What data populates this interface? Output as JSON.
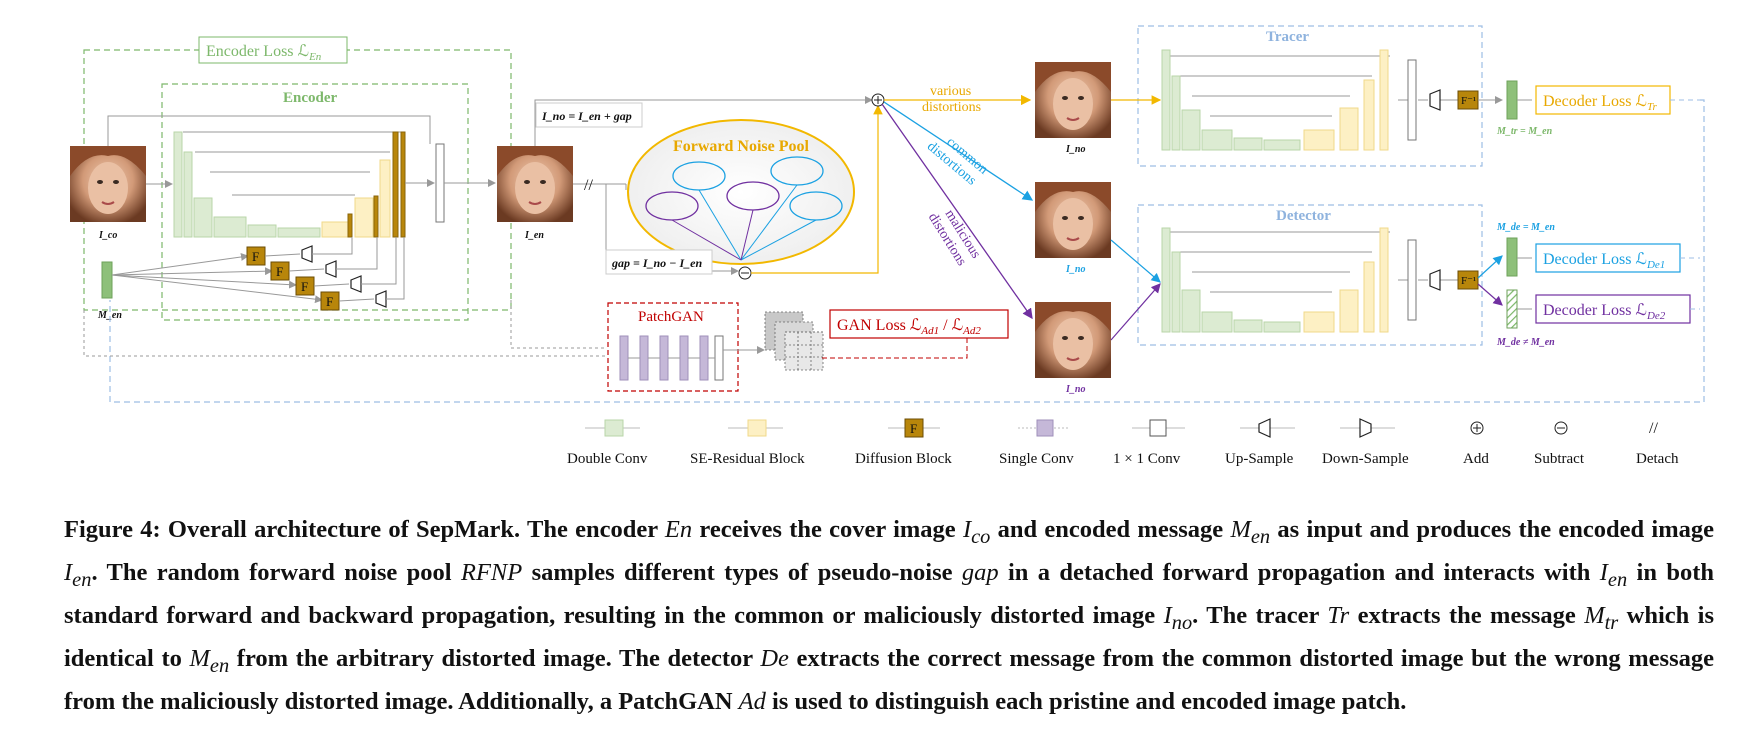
{
  "colors": {
    "encoder_green": "#7db86b",
    "block_green": "#dcebd2",
    "block_yellow": "#fdf0c4",
    "diffusion_gold": "#b8860b",
    "single_conv_purple": "#c5b8d8",
    "noise_pool_orange": "#f2b800",
    "common_blue": "#1ba1e2",
    "malicious_purple": "#7030a0",
    "tracer_blue": "#9dbde4",
    "gan_red": "#c00000",
    "decoder_yellow": "#f2b800"
  },
  "diagram": {
    "encoder_loss_label": "Encoder Loss ℒ",
    "encoder_loss_sub": "En",
    "encoder_label": "Encoder",
    "tracer_label": "Tracer",
    "detector_label": "Detector",
    "patchgan_label": "PatchGAN",
    "forward_noise_pool_label": "Forward Noise Pool",
    "gan_loss_label": "GAN Loss ℒ",
    "gan_loss_sub1": "Ad1",
    "gan_loss_sep": " / ℒ",
    "gan_loss_sub2": "Ad2",
    "decoder_loss_tr_label": "Decoder Loss ℒ",
    "decoder_loss_tr_sub": "Tr",
    "decoder_loss_de1_label": "Decoder Loss ℒ",
    "decoder_loss_de1_sub": "De1",
    "decoder_loss_de2_label": "Decoder Loss ℒ",
    "decoder_loss_de2_sub": "De2",
    "various_distortions": [
      "various",
      "distortions"
    ],
    "common_distortions": [
      "common",
      "distortions"
    ],
    "malicious_distortions": [
      "malicious",
      "distortions"
    ],
    "i_no_eq": "I",
    "i_no_eq_text": "I_no = I_en + gap",
    "gap_eq_text": "gap = I_no − I_en",
    "m_tr_eq": "M_tr = M_en",
    "m_de_eq": "M_de = M_en",
    "m_de_neq": "M_de ≠ M_en",
    "detach_symbol": "//",
    "f_label": "F",
    "f_inv_label": "F⁻¹",
    "image_labels": {
      "i_co": "I_co",
      "i_en": "I_en",
      "m_en": "M_en",
      "i_no_top": "I_no",
      "i_no_mid": "I_no",
      "i_no_bot": "I_no"
    }
  },
  "legend": [
    {
      "label": "Double Conv"
    },
    {
      "label": "SE-Residual Block"
    },
    {
      "label": "Diffusion Block"
    },
    {
      "label": "Single Conv"
    },
    {
      "label": "1 × 1 Conv"
    },
    {
      "label": "Up-Sample"
    },
    {
      "label": "Down-Sample"
    },
    {
      "label": "Add"
    },
    {
      "label": "Subtract"
    },
    {
      "label": "Detach"
    }
  ],
  "caption": {
    "p1": "Figure 4: Overall architecture of SepMark. The encoder ",
    "m1": "En",
    "p2": " receives the cover image ",
    "m2": "I",
    "m2s": "co",
    "p3": " and encoded message ",
    "m3": "M",
    "m3s": "en",
    "p4": " as input and produces the encoded image ",
    "m4": "I",
    "m4s": "en",
    "p5": ". The random forward noise pool ",
    "m5": "RFNP",
    "p6": " samples different types of pseudo-noise ",
    "m6": "gap",
    "p7": " in a detached forward propagation and interacts with ",
    "m7": "I",
    "m7s": "en",
    "p8": " in both standard forward and backward propagation, resulting in the common or maliciously distorted image ",
    "m8": "I",
    "m8s": "no",
    "p9": ". The tracer ",
    "m9": "Tr",
    "p10": " extracts the message ",
    "m10": "M",
    "m10s": "tr",
    "p11": " which is identical to ",
    "m11": "M",
    "m11s": "en",
    "p12": " from the arbitrary distorted image. The detector ",
    "m12": "De",
    "p13": " extracts the correct message from the common distorted image but the wrong message from the maliciously distorted image. Additionally, a PatchGAN ",
    "m13": "Ad",
    "p14": " is used to distinguish each pristine and encoded image patch."
  }
}
